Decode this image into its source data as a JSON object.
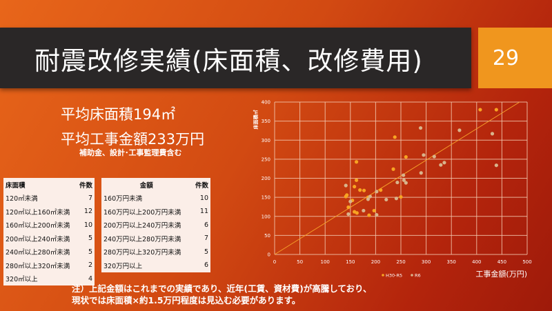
{
  "slide": {
    "title": "耐震改修実績(床面積、改修費用)",
    "page_number": "29"
  },
  "stats": {
    "avg_area": "平均床面積194㎡",
    "avg_cost": "平均工事金額233万円",
    "cost_note": "補助金、設計･工事監理費含む"
  },
  "area_table": {
    "headers": [
      "床面積",
      "件数"
    ],
    "rows": [
      [
        "120㎡未満",
        "7"
      ],
      [
        "120㎡以上160㎡未満",
        "12"
      ],
      [
        "160㎡以上200㎡未満",
        "10"
      ],
      [
        "200㎡以上240㎡未満",
        "5"
      ],
      [
        "240㎡以上280㎡未満",
        "5"
      ],
      [
        "280㎡以上320㎡未満",
        "2"
      ],
      [
        "320㎡以上",
        "4"
      ]
    ]
  },
  "cost_table": {
    "headers": [
      "金額",
      "件数"
    ],
    "rows": [
      [
        "160万円未満",
        "10"
      ],
      [
        "160万円以上200万円未満",
        "11"
      ],
      [
        "200万円以上240万円未満",
        "6"
      ],
      [
        "240万円以上280万円未満",
        "7"
      ],
      [
        "280万円以上320万円未満",
        "5"
      ],
      [
        "320万円以上",
        "6"
      ]
    ]
  },
  "note": {
    "line1": "注）上記金額はこれまでの実績であり、近年(工賃、資材費)が高騰しており、",
    "line2": "現状では床面積×約1.5万円程度は見込む必要があります。"
  },
  "chart_data": {
    "type": "scatter",
    "xlabel": "工事金額(万円)",
    "ylabel": "床面積㎡",
    "xlim": [
      0,
      500
    ],
    "ylim": [
      0,
      400
    ],
    "xticks": [
      0,
      50,
      100,
      150,
      200,
      250,
      300,
      350,
      400,
      450,
      500
    ],
    "yticks": [
      0,
      50,
      100,
      150,
      200,
      250,
      300,
      350,
      400
    ],
    "grid": true,
    "legend": "bottom",
    "trendline": {
      "x": [
        0,
        485
      ],
      "y": [
        0,
        400
      ],
      "color": "#f5a02a"
    },
    "series": [
      {
        "name": "H30-R5",
        "color": "#f7a423",
        "points": [
          [
            407,
            380
          ],
          [
            439,
            380
          ],
          [
            260,
            256
          ],
          [
            250,
            151
          ],
          [
            235,
            224
          ],
          [
            238,
            308
          ],
          [
            210,
            169
          ],
          [
            197,
            115
          ],
          [
            185,
            150
          ],
          [
            187,
            103
          ],
          [
            177,
            168
          ],
          [
            169,
            169
          ],
          [
            162,
            243
          ],
          [
            162,
            195
          ],
          [
            158,
            178
          ],
          [
            158,
            112
          ],
          [
            163,
            109
          ],
          [
            154,
            142
          ],
          [
            146,
            124
          ],
          [
            143,
            156
          ],
          [
            141,
            152
          ]
        ]
      },
      {
        "name": "R6",
        "color": "#d8b48c",
        "points": [
          [
            431,
            317
          ],
          [
            439,
            234
          ],
          [
            366,
            326
          ],
          [
            336,
            241
          ],
          [
            329,
            235
          ],
          [
            316,
            257
          ],
          [
            295,
            261
          ],
          [
            289,
            332
          ],
          [
            290,
            214
          ],
          [
            260,
            188
          ],
          [
            256,
            195
          ],
          [
            255,
            208
          ],
          [
            243,
            189
          ],
          [
            241,
            147
          ],
          [
            221,
            144
          ],
          [
            202,
            165
          ],
          [
            202,
            104
          ],
          [
            189,
            152
          ],
          [
            185,
            145
          ],
          [
            176,
            115
          ],
          [
            150,
            139
          ],
          [
            146,
            106
          ],
          [
            141,
            181
          ]
        ]
      }
    ]
  }
}
